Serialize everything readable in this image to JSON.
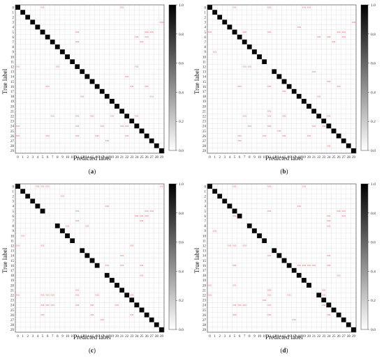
{
  "chart_data": [
    {
      "type": "heatmap",
      "caption": {
        "open": "(",
        "letter": "a",
        "close": ")"
      },
      "xlabel": "Predicted label",
      "ylabel": "True label",
      "tick_labels": [
        "0",
        "1",
        "2",
        "3",
        "4",
        "5",
        "6",
        "7",
        "8",
        "9",
        "10",
        "11",
        "12",
        "13",
        "14",
        "15",
        "16",
        "17",
        "18",
        "19",
        "20",
        "21",
        "22",
        "23",
        "24",
        "25",
        "26",
        "27",
        "28",
        "29"
      ],
      "diagonal_value": 0.98,
      "colorbar": {
        "min": 0.0,
        "max": 1.0,
        "ticks": [
          "0.0",
          "0.2",
          "0.4",
          "0.6",
          "0.8",
          "1.0"
        ]
      },
      "off_diagonal": [
        {
          "row": 0,
          "col": 5,
          "value": 0.01
        },
        {
          "row": 0,
          "col": 21,
          "value": 0.01
        },
        {
          "row": 3,
          "col": 29,
          "value": 0.01
        },
        {
          "row": 5,
          "col": 12,
          "value": 0.01
        },
        {
          "row": 5,
          "col": 26,
          "value": 0.02
        },
        {
          "row": 5,
          "col": 27,
          "value": 0.01
        },
        {
          "row": 6,
          "col": 24,
          "value": 0.01
        },
        {
          "row": 6,
          "col": 26,
          "value": 0.01
        },
        {
          "row": 7,
          "col": 12,
          "value": 0.01
        },
        {
          "row": 7,
          "col": 25,
          "value": 0.01
        },
        {
          "row": 12,
          "col": 0,
          "value": 0.01
        },
        {
          "row": 12,
          "col": 8,
          "value": 0.01
        },
        {
          "row": 12,
          "col": 24,
          "value": 0.01
        },
        {
          "row": 14,
          "col": 22,
          "value": 0.01
        },
        {
          "row": 16,
          "col": 6,
          "value": 0.01
        },
        {
          "row": 16,
          "col": 23,
          "value": 0.01
        },
        {
          "row": 16,
          "col": 26,
          "value": 0.01
        },
        {
          "row": 18,
          "col": 13,
          "value": 0.01
        },
        {
          "row": 18,
          "col": 27,
          "value": 0.01
        },
        {
          "row": 22,
          "col": 7,
          "value": 0.01
        },
        {
          "row": 22,
          "col": 12,
          "value": 0.01
        },
        {
          "row": 22,
          "col": 15,
          "value": 0.02
        },
        {
          "row": 22,
          "col": 19,
          "value": 0.01
        },
        {
          "row": 22,
          "col": 24,
          "value": 0.01
        },
        {
          "row": 24,
          "col": 0,
          "value": 0.01
        },
        {
          "row": 24,
          "col": 12,
          "value": 0.01
        },
        {
          "row": 24,
          "col": 17,
          "value": 0.01
        },
        {
          "row": 24,
          "col": 21,
          "value": 0.01
        },
        {
          "row": 24,
          "col": 22,
          "value": 0.01
        },
        {
          "row": 26,
          "col": 0,
          "value": 0.01
        },
        {
          "row": 26,
          "col": 6,
          "value": 0.01
        },
        {
          "row": 26,
          "col": 12,
          "value": 0.01
        },
        {
          "row": 26,
          "col": 16,
          "value": 0.01
        },
        {
          "row": 26,
          "col": 22,
          "value": 0.01
        },
        {
          "row": 27,
          "col": 18,
          "value": 0.01
        }
      ]
    },
    {
      "type": "heatmap",
      "caption": {
        "open": "(",
        "letter": "b",
        "close": ")"
      },
      "xlabel": "Predicted label",
      "ylabel": "True label",
      "tick_labels": [
        "0",
        "1",
        "2",
        "3",
        "4",
        "5",
        "6",
        "7",
        "8",
        "9",
        "10",
        "11",
        "12",
        "13",
        "14",
        "15",
        "16",
        "17",
        "18",
        "19",
        "20",
        "21",
        "22",
        "23",
        "24",
        "25",
        "26",
        "27",
        "28",
        "29"
      ],
      "diagonal_value": 0.98,
      "colorbar": {
        "min": 0.0,
        "max": 1.0,
        "ticks": [
          "0.0",
          "0.2",
          "0.4",
          "0.6",
          "0.8",
          "1.0"
        ]
      },
      "off_diagonal": [
        {
          "row": 0,
          "col": 5,
          "value": 0.01
        },
        {
          "row": 0,
          "col": 12,
          "value": 0.01
        },
        {
          "row": 0,
          "col": 19,
          "value": 0.01
        },
        {
          "row": 0,
          "col": 20,
          "value": 0.01
        },
        {
          "row": 3,
          "col": 29,
          "value": 0.01
        },
        {
          "row": 4,
          "col": 18,
          "value": 0.01
        },
        {
          "row": 5,
          "col": 0,
          "value": 0.01
        },
        {
          "row": 5,
          "col": 7,
          "value": 0.02
        },
        {
          "row": 5,
          "col": 12,
          "value": 0.01
        },
        {
          "row": 5,
          "col": 26,
          "value": 0.01
        },
        {
          "row": 5,
          "col": 27,
          "value": 0.01
        },
        {
          "row": 6,
          "col": 22,
          "value": 0.01
        },
        {
          "row": 6,
          "col": 24,
          "value": 0.01
        },
        {
          "row": 6,
          "col": 27,
          "value": 0.01
        },
        {
          "row": 7,
          "col": 25,
          "value": 0.01
        },
        {
          "row": 9,
          "col": 1,
          "value": 0.01
        },
        {
          "row": 12,
          "col": 7,
          "value": 0.01
        },
        {
          "row": 12,
          "col": 8,
          "value": 0.01
        },
        {
          "row": 12,
          "col": 12,
          "value": 0.01
        },
        {
          "row": 13,
          "col": 21,
          "value": 0.01
        },
        {
          "row": 15,
          "col": 24,
          "value": 0.01
        },
        {
          "row": 16,
          "col": 6,
          "value": 0.01
        },
        {
          "row": 16,
          "col": 12,
          "value": 0.01
        },
        {
          "row": 16,
          "col": 26,
          "value": 0.01
        },
        {
          "row": 17,
          "col": 15,
          "value": 0.01
        },
        {
          "row": 18,
          "col": 22,
          "value": 0.01
        },
        {
          "row": 21,
          "col": 12,
          "value": 0.01
        },
        {
          "row": 22,
          "col": 7,
          "value": 0.01
        },
        {
          "row": 22,
          "col": 12,
          "value": 0.01
        },
        {
          "row": 22,
          "col": 15,
          "value": 0.02
        },
        {
          "row": 22,
          "col": 24,
          "value": 0.01
        },
        {
          "row": 24,
          "col": 8,
          "value": 0.01
        },
        {
          "row": 24,
          "col": 12,
          "value": 0.01
        },
        {
          "row": 24,
          "col": 21,
          "value": 0.01
        },
        {
          "row": 24,
          "col": 23,
          "value": 0.01
        },
        {
          "row": 25,
          "col": 14,
          "value": 0.01
        },
        {
          "row": 26,
          "col": 6,
          "value": 0.01
        },
        {
          "row": 26,
          "col": 11,
          "value": 0.01
        },
        {
          "row": 26,
          "col": 15,
          "value": 0.01
        },
        {
          "row": 26,
          "col": 20,
          "value": 0.01
        },
        {
          "row": 27,
          "col": 6,
          "value": 0.01
        },
        {
          "row": 28,
          "col": 24,
          "value": 0.01
        }
      ]
    },
    {
      "type": "heatmap",
      "caption": {
        "open": "(",
        "letter": "c",
        "close": ")"
      },
      "xlabel": "Predicted label",
      "ylabel": "True label",
      "tick_labels": [
        "0",
        "1",
        "2",
        "3",
        "4",
        "5",
        "6",
        "7",
        "8",
        "9",
        "10",
        "11",
        "12",
        "13",
        "14",
        "15",
        "16",
        "17",
        "18",
        "19",
        "20",
        "21",
        "22",
        "23",
        "24",
        "25",
        "26",
        "27",
        "28",
        "29"
      ],
      "diagonal_value": 0.97,
      "colorbar": {
        "min": 0.0,
        "max": 1.0,
        "ticks": [
          "0.0",
          "0.2",
          "0.4",
          "0.6",
          "0.8",
          "1.0"
        ]
      },
      "off_diagonal": [
        {
          "row": 0,
          "col": 4,
          "value": 0.01
        },
        {
          "row": 0,
          "col": 5,
          "value": 0.01
        },
        {
          "row": 0,
          "col": 6,
          "value": 0.01
        },
        {
          "row": 0,
          "col": 29,
          "value": 0.01
        },
        {
          "row": 2,
          "col": 9,
          "value": 0.01
        },
        {
          "row": 4,
          "col": 18,
          "value": 0.01
        },
        {
          "row": 5,
          "col": 12,
          "value": 0.01
        },
        {
          "row": 5,
          "col": 26,
          "value": 0.01
        },
        {
          "row": 5,
          "col": 27,
          "value": 0.01
        },
        {
          "row": 6,
          "col": 6,
          "value": 0.02
        },
        {
          "row": 6,
          "col": 24,
          "value": 0.01
        },
        {
          "row": 6,
          "col": 25,
          "value": 0.01
        },
        {
          "row": 6,
          "col": 26,
          "value": 0.01
        },
        {
          "row": 7,
          "col": 7,
          "value": 0.01
        },
        {
          "row": 7,
          "col": 12,
          "value": 0.01
        },
        {
          "row": 7,
          "col": 25,
          "value": 0.01
        },
        {
          "row": 8,
          "col": 10,
          "value": 0.01
        },
        {
          "row": 8,
          "col": 14,
          "value": 0.01
        },
        {
          "row": 10,
          "col": 1,
          "value": 0.01
        },
        {
          "row": 12,
          "col": 0,
          "value": 0.01
        },
        {
          "row": 12,
          "col": 5,
          "value": 0.01
        },
        {
          "row": 12,
          "col": 12,
          "value": 0.01
        },
        {
          "row": 12,
          "col": 23,
          "value": 0.01
        },
        {
          "row": 14,
          "col": 21,
          "value": 0.01
        },
        {
          "row": 16,
          "col": 18,
          "value": 0.01
        },
        {
          "row": 16,
          "col": 21,
          "value": 0.01
        },
        {
          "row": 16,
          "col": 25,
          "value": 0.01
        },
        {
          "row": 17,
          "col": 17,
          "value": 0.01
        },
        {
          "row": 18,
          "col": 25,
          "value": 0.01
        },
        {
          "row": 21,
          "col": 12,
          "value": 0.01
        },
        {
          "row": 22,
          "col": 0,
          "value": 0.01
        },
        {
          "row": 22,
          "col": 5,
          "value": 0.01
        },
        {
          "row": 22,
          "col": 6,
          "value": 0.01
        },
        {
          "row": 22,
          "col": 7,
          "value": 0.01
        },
        {
          "row": 22,
          "col": 12,
          "value": 0.01
        },
        {
          "row": 22,
          "col": 16,
          "value": 0.02
        },
        {
          "row": 22,
          "col": 23,
          "value": 0.01
        },
        {
          "row": 24,
          "col": 5,
          "value": 0.01
        },
        {
          "row": 24,
          "col": 6,
          "value": 0.01
        },
        {
          "row": 24,
          "col": 7,
          "value": 0.01
        },
        {
          "row": 24,
          "col": 12,
          "value": 0.01
        },
        {
          "row": 24,
          "col": 15,
          "value": 0.01
        },
        {
          "row": 24,
          "col": 20,
          "value": 0.01
        },
        {
          "row": 26,
          "col": 5,
          "value": 0.01
        },
        {
          "row": 26,
          "col": 15,
          "value": 0.01
        },
        {
          "row": 26,
          "col": 23,
          "value": 0.01
        },
        {
          "row": 27,
          "col": 17,
          "value": 0.01
        }
      ]
    },
    {
      "type": "heatmap",
      "caption": {
        "open": "(",
        "letter": "d",
        "close": ")"
      },
      "xlabel": "Predicted label",
      "ylabel": "True label",
      "tick_labels": [
        "0",
        "1",
        "2",
        "3",
        "4",
        "5",
        "6",
        "7",
        "8",
        "9",
        "10",
        "11",
        "12",
        "13",
        "14",
        "15",
        "16",
        "17",
        "18",
        "19",
        "20",
        "21",
        "22",
        "23",
        "24",
        "25",
        "26",
        "27",
        "28",
        "29"
      ],
      "diagonal_value": 0.97,
      "colorbar": {
        "min": 0.0,
        "max": 1.0,
        "ticks": [
          "0.0",
          "0.2",
          "0.4",
          "0.6",
          "0.8",
          "1.0"
        ]
      },
      "off_diagonal": [
        {
          "row": 0,
          "col": 5,
          "value": 0.01
        },
        {
          "row": 0,
          "col": 12,
          "value": 0.01
        },
        {
          "row": 0,
          "col": 19,
          "value": 0.01
        },
        {
          "row": 4,
          "col": 18,
          "value": 0.01
        },
        {
          "row": 5,
          "col": 12,
          "value": 0.01
        },
        {
          "row": 5,
          "col": 26,
          "value": 0.02
        },
        {
          "row": 5,
          "col": 27,
          "value": 0.01
        },
        {
          "row": 6,
          "col": 5,
          "value": 0.01
        },
        {
          "row": 6,
          "col": 24,
          "value": 0.01
        },
        {
          "row": 6,
          "col": 27,
          "value": 0.01
        },
        {
          "row": 7,
          "col": 7,
          "value": 0.01
        },
        {
          "row": 7,
          "col": 24,
          "value": 0.01
        },
        {
          "row": 8,
          "col": 24,
          "value": 0.01
        },
        {
          "row": 9,
          "col": 1,
          "value": 0.01
        },
        {
          "row": 12,
          "col": 4,
          "value": 0.01
        },
        {
          "row": 12,
          "col": 5,
          "value": 0.01
        },
        {
          "row": 12,
          "col": 7,
          "value": 0.01
        },
        {
          "row": 12,
          "col": 12,
          "value": 0.01
        },
        {
          "row": 14,
          "col": 12,
          "value": 0.01
        },
        {
          "row": 14,
          "col": 24,
          "value": 0.01
        },
        {
          "row": 16,
          "col": 5,
          "value": 0.01
        },
        {
          "row": 16,
          "col": 18,
          "value": 0.01
        },
        {
          "row": 16,
          "col": 19,
          "value": 0.01
        },
        {
          "row": 16,
          "col": 20,
          "value": 0.01
        },
        {
          "row": 16,
          "col": 21,
          "value": 0.01
        },
        {
          "row": 16,
          "col": 24,
          "value": 0.01
        },
        {
          "row": 18,
          "col": 26,
          "value": 0.01
        },
        {
          "row": 20,
          "col": 0,
          "value": 0.01
        },
        {
          "row": 20,
          "col": 5,
          "value": 0.01
        },
        {
          "row": 21,
          "col": 12,
          "value": 0.02
        },
        {
          "row": 21,
          "col": 21,
          "value": 0.01
        },
        {
          "row": 21,
          "col": 23,
          "value": 0.01
        },
        {
          "row": 22,
          "col": 0,
          "value": 0.01
        },
        {
          "row": 22,
          "col": 12,
          "value": 0.01
        },
        {
          "row": 22,
          "col": 16,
          "value": 0.01
        },
        {
          "row": 22,
          "col": 23,
          "value": 0.01
        },
        {
          "row": 23,
          "col": 11,
          "value": 0.01
        },
        {
          "row": 24,
          "col": 5,
          "value": 0.01
        },
        {
          "row": 24,
          "col": 6,
          "value": 0.01
        },
        {
          "row": 24,
          "col": 7,
          "value": 0.01
        },
        {
          "row": 24,
          "col": 12,
          "value": 0.01
        },
        {
          "row": 24,
          "col": 23,
          "value": 0.01
        },
        {
          "row": 26,
          "col": 5,
          "value": 0.02
        },
        {
          "row": 26,
          "col": 12,
          "value": 0.01
        },
        {
          "row": 26,
          "col": 24,
          "value": 0.01
        },
        {
          "row": 27,
          "col": 17,
          "value": 0.01
        }
      ]
    }
  ]
}
